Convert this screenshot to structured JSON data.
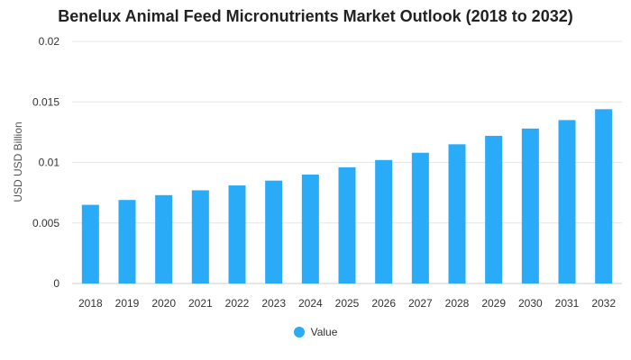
{
  "chart_data": {
    "type": "bar",
    "title": "Benelux Animal Feed Micronutrients Market Outlook (2018 to 2032)",
    "xlabel": "",
    "ylabel": "USD USD Billion",
    "categories": [
      "2018",
      "2019",
      "2020",
      "2021",
      "2022",
      "2023",
      "2024",
      "2025",
      "2026",
      "2027",
      "2028",
      "2029",
      "2030",
      "2031",
      "2032"
    ],
    "series": [
      {
        "name": "Value",
        "color": "#29ABF8",
        "values": [
          0.0065,
          0.0069,
          0.0073,
          0.0077,
          0.0081,
          0.0085,
          0.009,
          0.0096,
          0.0102,
          0.0108,
          0.0115,
          0.0122,
          0.0128,
          0.0135,
          0.0144
        ]
      }
    ],
    "ylim": [
      0,
      0.02
    ],
    "yticks": [
      {
        "value": 0,
        "label": "0"
      },
      {
        "value": 0.005,
        "label": "0.005"
      },
      {
        "value": 0.01,
        "label": "0.01"
      },
      {
        "value": 0.015,
        "label": "0.015"
      },
      {
        "value": 0.02,
        "label": "0.02"
      }
    ],
    "grid": true,
    "legend_position": "bottom"
  }
}
